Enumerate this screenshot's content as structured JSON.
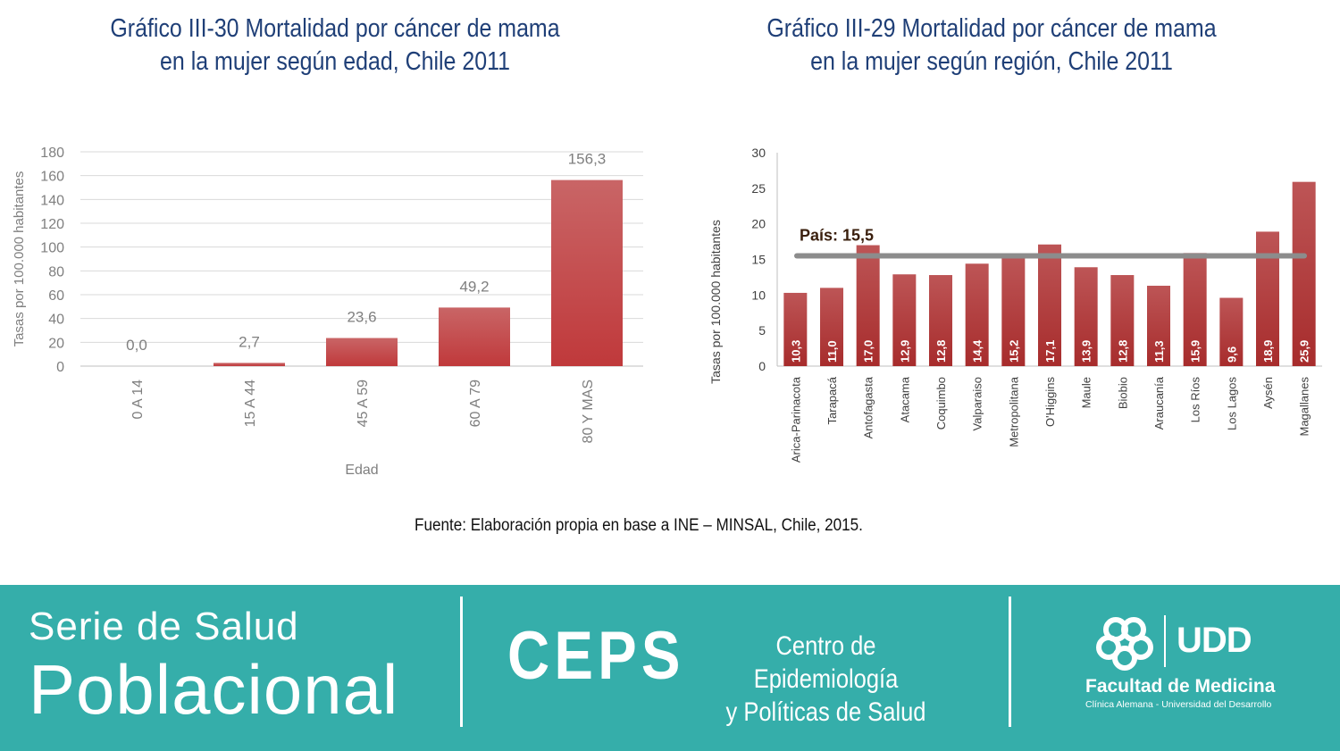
{
  "chart_data": [
    {
      "type": "bar",
      "title": "Gráfico III-30 Mortalidad por cáncer de mama en la mujer según edad, Chile 2011",
      "title_lines": [
        "Gráfico III-30 Mortalidad por cáncer de mama",
        "en la mujer según edad, Chile 2011"
      ],
      "categories": [
        "0 A 14",
        "15 A 44",
        "45 A 59",
        "60 A 79",
        "80 Y MAS"
      ],
      "values": [
        0.0,
        2.7,
        23.6,
        49.2,
        156.3
      ],
      "data_labels": [
        "0,0",
        "2,7",
        "23,6",
        "49,2",
        "156,3"
      ],
      "xlabel": "Edad",
      "ylabel": "Tasas por 100.000 habitantes",
      "ylim": [
        0,
        180
      ],
      "yticks": [
        0,
        20,
        40,
        60,
        80,
        100,
        120,
        140,
        160,
        180
      ],
      "grid": true,
      "bar_color": "#c0393b"
    },
    {
      "type": "bar",
      "title": "Gráfico III-29 Mortalidad por cáncer de mama en la mujer según región, Chile 2011",
      "title_lines": [
        "Gráfico III-29 Mortalidad por cáncer de mama",
        "en la mujer según región, Chile 2011"
      ],
      "categories": [
        "Arica-Parinacota",
        "Tarapacá",
        "Antofagasta",
        "Atacama",
        "Coquimbo",
        "Valparaiso",
        "Metropolitana",
        "O'Higgins",
        "Maule",
        "Biobio",
        "Araucanía",
        "Los Ríos",
        "Los Lagos",
        "Aysén",
        "Magallanes"
      ],
      "values": [
        10.3,
        11.0,
        17.0,
        12.9,
        12.8,
        14.4,
        15.2,
        17.1,
        13.9,
        12.8,
        11.3,
        15.9,
        9.6,
        18.9,
        25.9
      ],
      "data_labels": [
        "10,3",
        "11,0",
        "17,0",
        "12,9",
        "12,8",
        "14,4",
        "15,2",
        "17,1",
        "13,9",
        "12,8",
        "11,3",
        "15,9",
        "9,6",
        "18,9",
        "25,9"
      ],
      "ylabel": "Tasas por 100.000 habitantes",
      "ylim": [
        0,
        30
      ],
      "yticks": [
        0,
        5,
        10,
        15,
        20,
        25,
        30
      ],
      "grid": false,
      "reference_line": {
        "value": 15.5,
        "label": "País: 15,5",
        "color": "#8c8c8c"
      },
      "bar_color": "#a9302f"
    }
  ],
  "source": "Fuente: Elaboración propia en base a INE – MINSAL, Chile, 2015.",
  "footer": {
    "serie_line1": "Serie de Salud",
    "serie_line2": "Poblacional",
    "ceps_logo": "CEPS",
    "ceps_name_line1": "Centro de Epidemiología",
    "ceps_name_line2": "y Políticas de Salud",
    "udd_logo": "UDD",
    "faculty_name": "Facultad de Medicina",
    "faculty_sub": "Clínica Alemana - Universidad del Desarrollo",
    "background_color": "#35aeaa",
    "logo_icon": "clover-knot-icon"
  }
}
